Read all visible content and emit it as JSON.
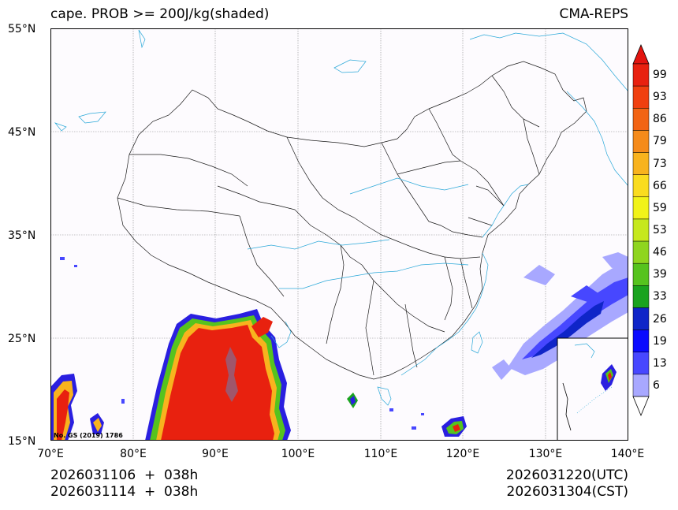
{
  "title": {
    "left": "cape. PROB >= 200J/kg(shaded)",
    "right": "CMA-REPS"
  },
  "axes": {
    "lat_labels": [
      "55°N",
      "45°N",
      "35°N",
      "25°N",
      "15°N"
    ],
    "lon_labels": [
      "70°E",
      "80°E",
      "90°E",
      "100°E",
      "110°E",
      "120°E",
      "130°E",
      "140°E"
    ]
  },
  "colorbar": {
    "labels": [
      "99",
      "93",
      "86",
      "79",
      "73",
      "66",
      "59",
      "53",
      "46",
      "39",
      "33",
      "26",
      "19",
      "13",
      "6"
    ],
    "colors": [
      "#e8210f",
      "#f0400f",
      "#f26414",
      "#f58b1a",
      "#f8b31e",
      "#fadc1f",
      "#f1f319",
      "#c6e81d",
      "#8fd51f",
      "#56c31e",
      "#1aa31f",
      "#0f25c8",
      "#0a0aff",
      "#4747ff",
      "#a8a8ff"
    ],
    "over_color": "#e3140f",
    "under_color": "#ffffff"
  },
  "watermark": "No. GS (2019) 1786",
  "footer": {
    "init_utc": "2026031106  +  038h",
    "init_cst": "2026031114  +  038h",
    "valid_utc": "2026031220(UTC)",
    "valid_cst": "2026031304(CST)"
  }
}
